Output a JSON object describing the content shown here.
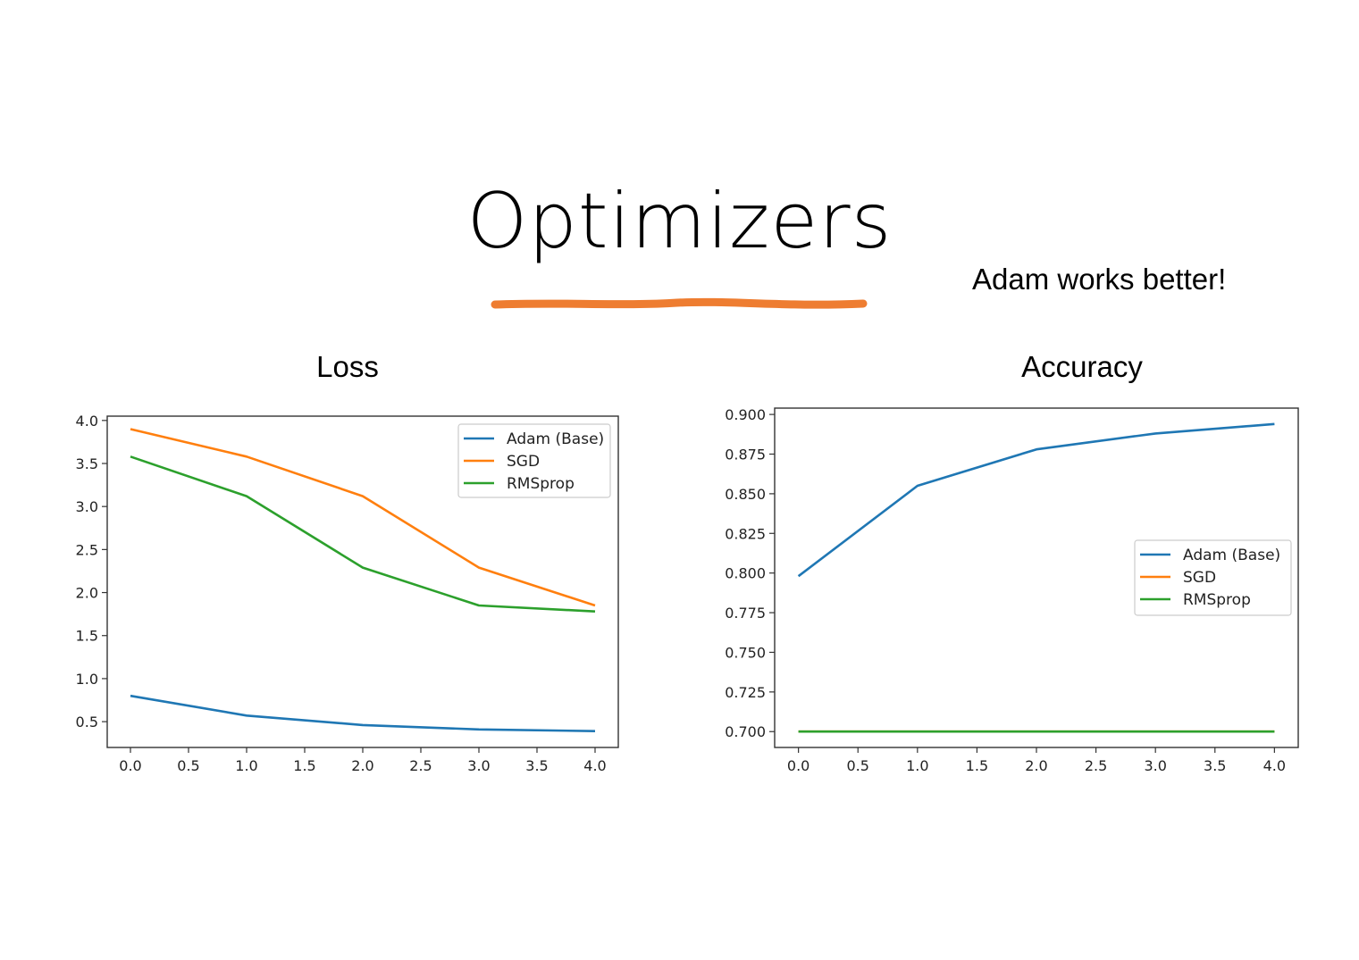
{
  "slide": {
    "title": "Optimizers",
    "note": "Adam works better!",
    "underline_color": "#ee7d31"
  },
  "chart_data": [
    {
      "type": "line",
      "title": "Loss",
      "xlabel": "",
      "ylabel": "",
      "x": [
        0,
        1,
        2,
        3,
        4
      ],
      "xlim": [
        -0.2,
        4.2
      ],
      "ylim": [
        0.2,
        4.05
      ],
      "x_ticks": [
        "0.0",
        "0.5",
        "1.0",
        "1.5",
        "2.0",
        "2.5",
        "3.0",
        "3.5",
        "4.0"
      ],
      "x_tick_values": [
        0,
        0.5,
        1,
        1.5,
        2,
        2.5,
        3,
        3.5,
        4
      ],
      "y_ticks": [
        "0.5",
        "1.0",
        "1.5",
        "2.0",
        "2.5",
        "3.0",
        "3.5",
        "4.0"
      ],
      "y_tick_values": [
        0.5,
        1.0,
        1.5,
        2.0,
        2.5,
        3.0,
        3.5,
        4.0
      ],
      "grid": false,
      "legend_position": "top-right",
      "series": [
        {
          "name": "Adam (Base)",
          "color": "#1f77b4",
          "values": [
            0.8,
            0.57,
            0.46,
            0.41,
            0.39
          ]
        },
        {
          "name": "SGD",
          "color": "#ff7f0e",
          "values": [
            3.9,
            3.58,
            3.12,
            2.29,
            1.85
          ]
        },
        {
          "name": "RMSprop",
          "color": "#2ca02c",
          "values": [
            3.58,
            3.12,
            2.29,
            1.85,
            1.78
          ]
        }
      ]
    },
    {
      "type": "line",
      "title": "Accuracy",
      "xlabel": "",
      "ylabel": "",
      "x": [
        0,
        1,
        2,
        3,
        4
      ],
      "xlim": [
        -0.2,
        4.2
      ],
      "ylim": [
        0.69,
        0.904
      ],
      "x_ticks": [
        "0.0",
        "0.5",
        "1.0",
        "1.5",
        "2.0",
        "2.5",
        "3.0",
        "3.5",
        "4.0"
      ],
      "x_tick_values": [
        0,
        0.5,
        1,
        1.5,
        2,
        2.5,
        3,
        3.5,
        4
      ],
      "y_ticks": [
        "0.700",
        "0.725",
        "0.750",
        "0.775",
        "0.800",
        "0.825",
        "0.850",
        "0.875",
        "0.900"
      ],
      "y_tick_values": [
        0.7,
        0.725,
        0.75,
        0.775,
        0.8,
        0.825,
        0.85,
        0.875,
        0.9
      ],
      "grid": false,
      "legend_position": "center-right",
      "series": [
        {
          "name": "Adam (Base)",
          "color": "#1f77b4",
          "values": [
            0.798,
            0.855,
            0.878,
            0.888,
            0.894
          ]
        },
        {
          "name": "SGD",
          "color": "#ff7f0e",
          "values": [
            0.7,
            0.7,
            0.7,
            0.7,
            0.7
          ]
        },
        {
          "name": "RMSprop",
          "color": "#2ca02c",
          "values": [
            0.7,
            0.7,
            0.7,
            0.7,
            0.7
          ]
        }
      ]
    }
  ]
}
